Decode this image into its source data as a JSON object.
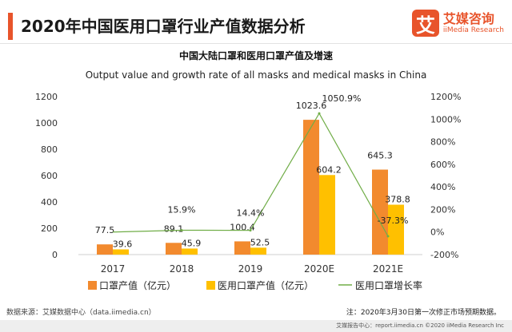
{
  "header": {
    "title": "2020年中国医用口罩行业产值数据分析",
    "logo_mark": "艾",
    "logo_name": "艾媒咨询",
    "logo_sub": "iiMedia Research"
  },
  "source_text": "数据来源：艾媒数据中心（data.iimedia.cn）",
  "note_text": "注：2020年3月30日第一次修正市场预期数据。",
  "footer_text": "艾媒报告中心：report.iimedia.cn ©2020 iiMedia Research Inc",
  "colors": {
    "accent": "#e8542b",
    "bar1": "#f28a2e",
    "bar2": "#ffc000",
    "line": "#70ad47"
  },
  "chart_data": {
    "type": "bar",
    "title": "中国大陆口罩和医用口罩产值及增速",
    "subtitle": "Output value and growth rate of all masks and medical masks in China",
    "categories": [
      "2017",
      "2018",
      "2019",
      "2020E",
      "2021E"
    ],
    "series": [
      {
        "name": "口罩产值（亿元）",
        "type": "bar",
        "axis": "left",
        "values": [
          77.5,
          89.1,
          100.4,
          1023.6,
          645.3
        ],
        "labels": [
          "77.5",
          "89.1",
          "100.4",
          "1023.6",
          "645.3"
        ]
      },
      {
        "name": "医用口罩产值（亿元）",
        "type": "bar",
        "axis": "left",
        "values": [
          39.6,
          45.9,
          52.5,
          604.2,
          378.8
        ],
        "labels": [
          "39.6",
          "45.9",
          "52.5",
          "604.2",
          "378.8"
        ]
      },
      {
        "name": "医用口罩增长率",
        "type": "line",
        "axis": "right",
        "values": [
          null,
          15.9,
          14.4,
          1050.9,
          -37.3
        ],
        "labels": [
          "",
          "15.9%",
          "14.4%",
          "1050.9%",
          "-37.3%"
        ]
      }
    ],
    "y_left": {
      "min": 0,
      "max": 1200,
      "ticks": [
        0,
        200,
        400,
        600,
        800,
        1000,
        1200
      ]
    },
    "y_right": {
      "min": -200,
      "max": 1200,
      "ticks": [
        -200,
        0,
        200,
        400,
        600,
        800,
        1000,
        1200
      ],
      "tick_labels": [
        "-200%",
        "0%",
        "200%",
        "400%",
        "600%",
        "800%",
        "1000%",
        "1200%"
      ]
    },
    "legend_position": "bottom",
    "grid": false
  }
}
